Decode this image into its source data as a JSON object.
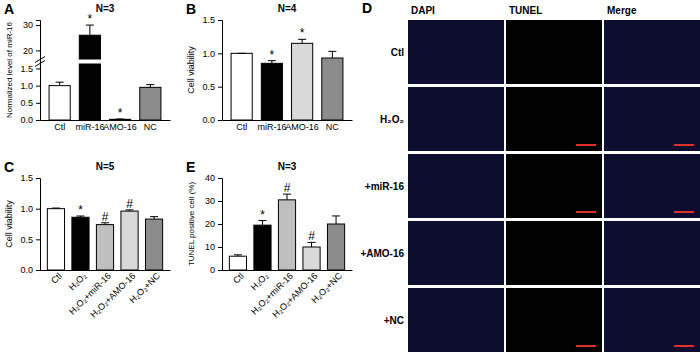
{
  "chart_data": [
    {
      "type": "bar",
      "panel": "A",
      "title": "N=3",
      "ylabel": "Normalized level of miR-16",
      "categories": [
        "Ctl",
        "miR-16",
        "AMO-16",
        "NC"
      ],
      "values": [
        1.0,
        26,
        0.02,
        0.95
      ],
      "errors": [
        0.1,
        4,
        0.01,
        0.08
      ],
      "significance": [
        null,
        "*",
        "*",
        null
      ],
      "colors": [
        "#ffffff",
        "#000000",
        "#d9d9d9",
        "#8c8c8c"
      ],
      "ylim": [
        0,
        32
      ],
      "ybreak": [
        1.6,
        17
      ],
      "yticks": [
        {
          "value": 0,
          "label": "0.0"
        },
        0.5,
        {
          "value": 1,
          "label": "1.0"
        },
        1.5,
        20,
        30
      ]
    },
    {
      "type": "bar",
      "panel": "B",
      "title": "N=4",
      "ylabel": "Cell viability",
      "categories": [
        "Ctl",
        "miR-16",
        "AMO-16",
        "NC"
      ],
      "values": [
        1.0,
        0.85,
        1.15,
        0.93
      ],
      "errors": [
        0,
        0.04,
        0.06,
        0.1
      ],
      "significance": [
        null,
        "*",
        "*",
        null
      ],
      "colors": [
        "#ffffff",
        "#000000",
        "#d9d9d9",
        "#8c8c8c"
      ],
      "ylim": [
        0,
        1.5
      ],
      "yticks": [
        {
          "value": 0,
          "label": "0.0"
        },
        0.5,
        {
          "value": 1,
          "label": "1.0"
        },
        1.5
      ]
    },
    {
      "type": "bar",
      "panel": "C",
      "title": "N=5",
      "ylabel": "Cell viability",
      "categories": [
        "Ctl",
        "H₂O₂",
        "H₂O₂+miR-16",
        "H₂O₂+AMO-16",
        "H₂O₂+NC"
      ],
      "values": [
        1.0,
        0.86,
        0.74,
        0.96,
        0.83
      ],
      "errors": [
        0.01,
        0.02,
        0.03,
        0.02,
        0.04
      ],
      "significance": [
        null,
        "*",
        "#",
        "#",
        null
      ],
      "colors": [
        "#ffffff",
        "#000000",
        "#bfbfbf",
        "#d9d9d9",
        "#8c8c8c"
      ],
      "ylim": [
        0,
        1.5
      ],
      "yticks": [
        {
          "value": 0,
          "label": "0.0"
        },
        0.5,
        {
          "value": 1,
          "label": "1.0"
        },
        1.5
      ]
    },
    {
      "type": "bar",
      "panel": "E",
      "title": "N=3",
      "ylabel": "TUNEL positive cell (%)",
      "categories": [
        "Ctl",
        "H₂O₂",
        "H₂O₂+miR-16",
        "H₂O₂+AMO-16",
        "H₂O₂+NC"
      ],
      "values": [
        6,
        19.5,
        30.5,
        10,
        20
      ],
      "errors": [
        0.6,
        2,
        2.5,
        2,
        3.5
      ],
      "significance": [
        null,
        "*",
        "#",
        "#",
        null
      ],
      "colors": [
        "#ffffff",
        "#000000",
        "#bfbfbf",
        "#d9d9d9",
        "#8c8c8c"
      ],
      "ylim": [
        0,
        40
      ],
      "yticks": [
        0,
        10,
        20,
        30,
        40
      ]
    }
  ],
  "image_panel": {
    "panel": "D",
    "columns": [
      "DAPI",
      "TUNEL",
      "Merge"
    ],
    "rows": [
      "Ctl",
      "H₂O₂",
      "+miR-16",
      "+AMO-16",
      "+NC"
    ]
  }
}
